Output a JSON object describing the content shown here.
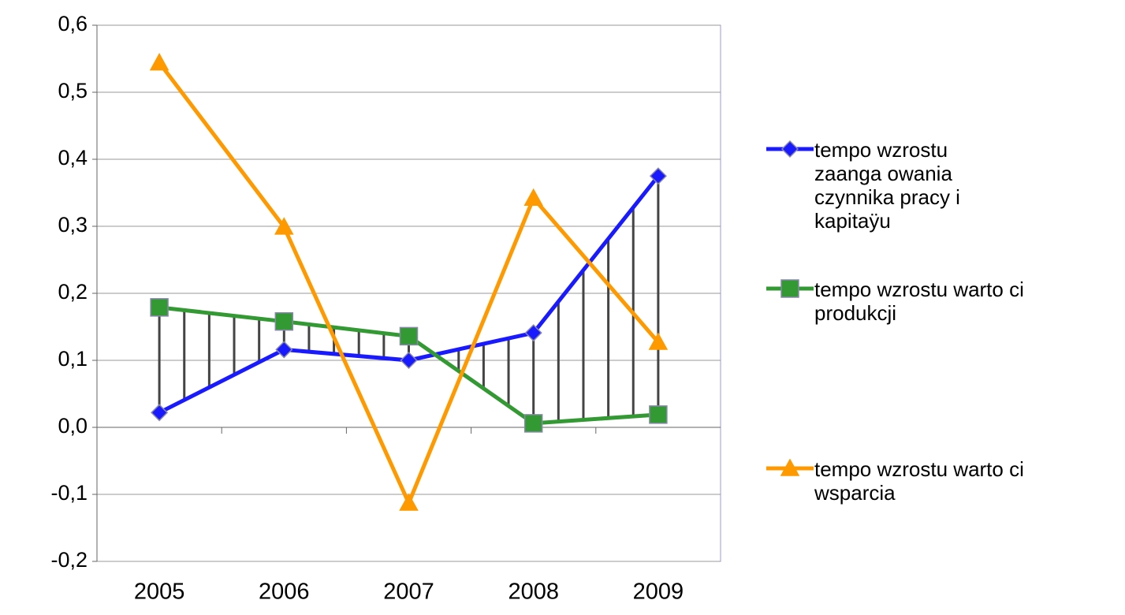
{
  "chart_data": {
    "type": "line",
    "categories": [
      "2005",
      "2006",
      "2007",
      "2008",
      "2009"
    ],
    "series": [
      {
        "name": "tempo wzrostu zaanga owania czynnika pracy i kapitaÿu",
        "color": "#1a1aff",
        "marker": "diamond",
        "values": [
          0.022,
          0.116,
          0.1,
          0.141,
          0.375
        ]
      },
      {
        "name": "tempo wzrostu warto ci produkcji",
        "color": "#339933",
        "marker": "square",
        "values": [
          0.179,
          0.158,
          0.136,
          0.006,
          0.019
        ]
      },
      {
        "name": "tempo wzrostu warto ci wsparcia",
        "color": "#ff9900",
        "marker": "triangle",
        "values": [
          0.544,
          0.299,
          -0.113,
          0.342,
          0.127
        ]
      }
    ],
    "ylim": [
      -0.2,
      0.6
    ],
    "yticks": [
      {
        "value": -0.2,
        "label": "-0,2"
      },
      {
        "value": -0.1,
        "label": "-0,1"
      },
      {
        "value": 0,
        "label": "0,0"
      },
      {
        "value": 0.1,
        "label": "0,1"
      },
      {
        "value": 0.2,
        "label": "0,2"
      },
      {
        "value": 0.3,
        "label": "0,3"
      },
      {
        "value": 0.4,
        "label": "0,4"
      },
      {
        "value": 0.5,
        "label": "0,5"
      },
      {
        "value": 0.6,
        "label": "0,6"
      }
    ],
    "grid": true,
    "legend": "right"
  }
}
